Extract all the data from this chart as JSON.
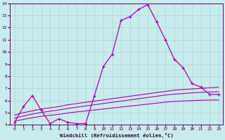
{
  "xlabel": "Windchill (Refroidissement éolien,°C)",
  "bg_color": "#c8ecec",
  "line_color": "#aa00aa",
  "grid_color": "#aacccc",
  "x": [
    0,
    1,
    2,
    3,
    4,
    5,
    6,
    7,
    8,
    9,
    10,
    11,
    12,
    13,
    14,
    15,
    16,
    17,
    18,
    19,
    20,
    21,
    22,
    23
  ],
  "windchill": [
    4.2,
    5.5,
    6.4,
    5.2,
    4.1,
    4.5,
    4.2,
    4.1,
    4.1,
    6.4,
    8.8,
    9.8,
    12.6,
    12.9,
    13.5,
    13.9,
    12.5,
    11.0,
    9.4,
    8.7,
    7.4,
    7.1,
    6.5,
    6.5
  ],
  "trend_top": [
    4.8,
    5.0,
    5.15,
    5.3,
    5.4,
    5.5,
    5.65,
    5.75,
    5.85,
    5.95,
    6.05,
    6.15,
    6.25,
    6.35,
    6.45,
    6.55,
    6.65,
    6.75,
    6.85,
    6.9,
    6.95,
    7.0,
    7.05,
    7.1
  ],
  "trend_mid": [
    4.55,
    4.72,
    4.88,
    5.02,
    5.12,
    5.22,
    5.35,
    5.45,
    5.55,
    5.65,
    5.75,
    5.85,
    5.95,
    6.05,
    6.15,
    6.25,
    6.35,
    6.45,
    6.52,
    6.58,
    6.63,
    6.67,
    6.7,
    6.72
  ],
  "trend_bot": [
    4.3,
    4.45,
    4.58,
    4.7,
    4.78,
    4.86,
    4.97,
    5.06,
    5.14,
    5.22,
    5.3,
    5.38,
    5.46,
    5.54,
    5.62,
    5.7,
    5.78,
    5.86,
    5.92,
    5.96,
    5.99,
    6.02,
    6.04,
    6.05
  ],
  "ylim": [
    4,
    14
  ],
  "xlim": [
    0,
    23
  ],
  "xtick_labels": [
    "0",
    "1",
    "2",
    "3",
    "4",
    "5",
    "6",
    "7",
    "8",
    "9",
    "10",
    "11",
    "12",
    "13",
    "14",
    "15",
    "16",
    "17",
    "18",
    "19",
    "20",
    "21",
    "22",
    "23"
  ]
}
